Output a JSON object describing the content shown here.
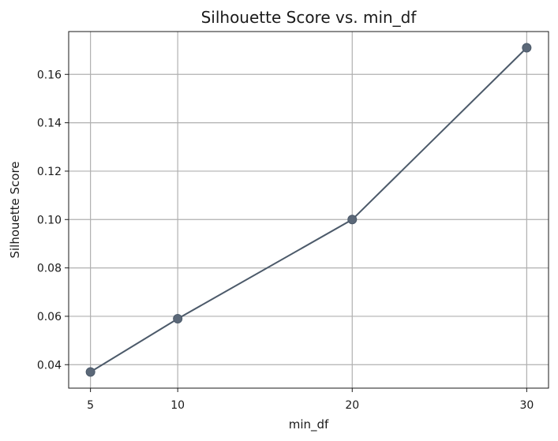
{
  "chart_data": {
    "type": "line",
    "title": "Silhouette Score vs. min_df",
    "xlabel": "min_df",
    "ylabel": "Silhouette Score",
    "x": [
      5,
      10,
      20,
      30
    ],
    "series": [
      {
        "values": [
          0.037,
          0.059,
          0.1,
          0.171
        ]
      }
    ],
    "xticks": [
      5,
      10,
      20,
      30
    ],
    "xtick_labels": [
      "5",
      "10",
      "20",
      "30"
    ],
    "yticks": [
      0.04,
      0.06,
      0.08,
      0.1,
      0.12,
      0.14,
      0.16
    ],
    "ytick_labels": [
      "0.04",
      "0.06",
      "0.08",
      "0.10",
      "0.12",
      "0.14",
      "0.16"
    ],
    "xlim": [
      3.75,
      31.25
    ],
    "ylim": [
      0.0303,
      0.1777
    ],
    "grid": true,
    "markers": true,
    "line_color": "#4c5a6a",
    "marker_color": "#5b6878"
  }
}
